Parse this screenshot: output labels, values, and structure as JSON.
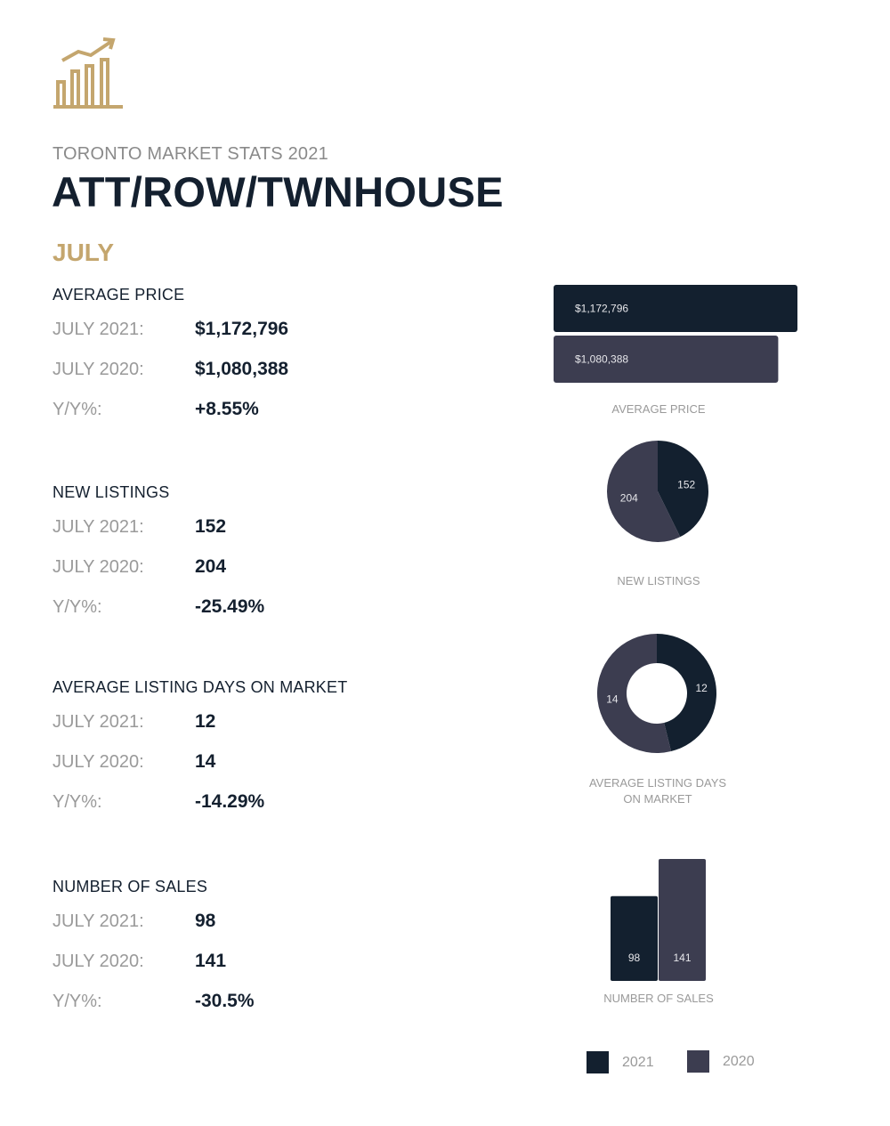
{
  "header": {
    "subtitle": "TORONTO MARKET STATS 2021",
    "title": "ATT/ROW/TWNHOUSE",
    "month": "JULY",
    "logo_icon": "bar-chart-growth-icon"
  },
  "colors": {
    "navy": "#13202f",
    "slate": "#3c3d50",
    "gold": "#c4a66e"
  },
  "sections": [
    {
      "title": "AVERAGE PRICE",
      "rows": [
        {
          "label": "JULY 2021:",
          "value": "$1,172,796"
        },
        {
          "label": "JULY 2020:",
          "value": "$1,080,388"
        },
        {
          "label": "Y/Y%:",
          "value": "+8.55%"
        }
      ]
    },
    {
      "title": "NEW LISTINGS",
      "rows": [
        {
          "label": "JULY 2021:",
          "value": "152"
        },
        {
          "label": "JULY 2020:",
          "value": "204"
        },
        {
          "label": "Y/Y%:",
          "value": "-25.49%"
        }
      ]
    },
    {
      "title": "AVERAGE LISTING DAYS ON MARKET",
      "rows": [
        {
          "label": "JULY 2021:",
          "value": "12"
        },
        {
          "label": "JULY 2020:",
          "value": "14"
        },
        {
          "label": "Y/Y%:",
          "value": "-14.29%"
        }
      ]
    },
    {
      "title": "NUMBER OF SALES",
      "rows": [
        {
          "label": "JULY 2021:",
          "value": "98"
        },
        {
          "label": "JULY 2020:",
          "value": "141"
        },
        {
          "label": "Y/Y%:",
          "value": "-30.5%"
        }
      ]
    }
  ],
  "chart_data": [
    {
      "type": "bar",
      "orientation": "horizontal",
      "title": "AVERAGE PRICE",
      "categories": [
        "2021",
        "2020"
      ],
      "values": [
        1172796,
        1080388
      ],
      "labels": [
        "$1,172,796",
        "$1,080,388"
      ],
      "xlim": [
        0,
        1172796
      ]
    },
    {
      "type": "pie",
      "title": "NEW LISTINGS",
      "categories": [
        "2021",
        "2020"
      ],
      "values": [
        152,
        204
      ],
      "labels": [
        "152",
        "204"
      ]
    },
    {
      "type": "pie",
      "variant": "donut",
      "title": "AVERAGE LISTING DAYS ON MARKET",
      "categories": [
        "2021",
        "2020"
      ],
      "values": [
        12,
        14
      ],
      "labels": [
        "12",
        "14"
      ]
    },
    {
      "type": "bar",
      "orientation": "vertical",
      "title": "NUMBER OF SALES",
      "categories": [
        "2021",
        "2020"
      ],
      "values": [
        98,
        141
      ],
      "labels": [
        "98",
        "141"
      ],
      "ylim": [
        0,
        141
      ]
    }
  ],
  "legend": {
    "items": [
      {
        "label": "2021",
        "color": "#13202f"
      },
      {
        "label": "2020",
        "color": "#3c3d50"
      }
    ]
  }
}
